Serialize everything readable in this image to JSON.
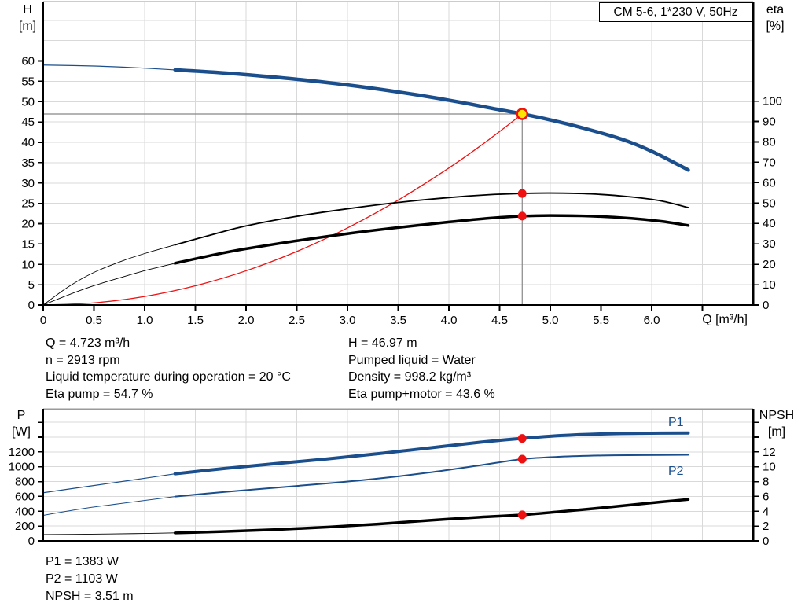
{
  "title_box": {
    "label": "CM 5-6, 1*230 V, 50Hz"
  },
  "colors": {
    "blue": "#1a4e8c",
    "red": "#ee1111",
    "yellow": "#ffe600",
    "grid": "#d9d9d9",
    "crosshair": "#878787",
    "axis": "#000000",
    "border": "#9a9a9a"
  },
  "info_block": {
    "left": [
      "Q = 4.723 m³/h",
      "n = 2913 rpm",
      "Liquid temperature during operation = 20 °C",
      "Eta pump = 54.7 %"
    ],
    "right": [
      "H = 46.97 m",
      "Pumped liquid = Water",
      "Density = 998.2 kg/m³",
      "Eta pump+motor = 43.6 %"
    ]
  },
  "results_block": {
    "lines": [
      "P1 = 1383 W",
      "P2 = 1103 W",
      "NPSH = 3.51 m"
    ]
  },
  "curve_labels": {
    "p1": "P1",
    "p2": "P2"
  },
  "chart_data": [
    {
      "id": "top-chart",
      "type": "line",
      "title": "CM 5-6, 1*230 V, 50Hz",
      "xlabel": "Q [m³/h]",
      "ylabel_left_lines": [
        "H",
        "[m]"
      ],
      "ylabel_right_lines": [
        "eta",
        "[%]"
      ],
      "axes": {
        "x": {
          "min": 0,
          "max": 7.0,
          "ticks": [
            0,
            0.5,
            1,
            1.5,
            2,
            2.5,
            3,
            3.5,
            4,
            4.5,
            5,
            5.5,
            6
          ],
          "tick_labels": [
            "0",
            "0.5",
            "1.0",
            "1.5",
            "2.0",
            "2.5",
            "3.0",
            "3.5",
            "4.0",
            "4.5",
            "5.0",
            "5.5",
            "6.0"
          ],
          "minor_ticks": [
            6.5
          ],
          "grid": [
            0.5,
            1,
            1.5,
            2,
            2.5,
            3,
            3.5,
            4,
            4.5,
            5,
            5.5,
            6,
            6.5
          ],
          "show_ticks": true
        },
        "left": {
          "min": 0,
          "max": 74.6,
          "ticks": [
            0,
            5,
            10,
            15,
            20,
            25,
            30,
            35,
            40,
            45,
            50,
            55,
            60
          ],
          "tick_labels": [
            "0",
            "5",
            "10",
            "15",
            "20",
            "25",
            "30",
            "35",
            "40",
            "45",
            "50",
            "55",
            "60"
          ],
          "grid": [
            5,
            10,
            15,
            20,
            25,
            30,
            35,
            40,
            45,
            50,
            55,
            60,
            65,
            70
          ]
        },
        "right": {
          "min": 0,
          "max": 148.8,
          "ticks": [
            0,
            10,
            20,
            30,
            40,
            50,
            60,
            70,
            80,
            90,
            100
          ],
          "tick_labels": [
            "0",
            "10",
            "20",
            "30",
            "40",
            "50",
            "60",
            "70",
            "80",
            "90",
            "100"
          ]
        }
      },
      "series": [
        {
          "name": "H pump curve",
          "axis": "left",
          "color": "blue",
          "width": 4.5,
          "thin_until": 1.3,
          "thin_width": 1.2,
          "points": [
            [
              0,
              59.0
            ],
            [
              0.5,
              58.75
            ],
            [
              0.9,
              58.35
            ],
            [
              1.3,
              57.8
            ],
            [
              1.7,
              57.2
            ],
            [
              2.1,
              56.4
            ],
            [
              2.5,
              55.5
            ],
            [
              2.9,
              54.4
            ],
            [
              3.3,
              53.1
            ],
            [
              3.7,
              51.6
            ],
            [
              4.1,
              49.9
            ],
            [
              4.5,
              48.0
            ],
            [
              4.723,
              46.97
            ],
            [
              5.0,
              45.5
            ],
            [
              5.31,
              43.6
            ],
            [
              5.7,
              40.8
            ],
            [
              6.0,
              37.8
            ],
            [
              6.36,
              33.2
            ]
          ]
        },
        {
          "name": "System curve",
          "axis": "left",
          "color": "red",
          "width": 1.3,
          "points": [
            [
              0,
              0
            ],
            [
              0.5,
              0.53
            ],
            [
              1.0,
              2.11
            ],
            [
              1.5,
              4.74
            ],
            [
              2.0,
              8.42
            ],
            [
              2.5,
              13.16
            ],
            [
              3.0,
              18.95
            ],
            [
              3.5,
              25.79
            ],
            [
              4.0,
              33.69
            ],
            [
              4.3,
              38.93
            ],
            [
              4.55,
              43.6
            ],
            [
              4.723,
              46.97
            ]
          ]
        },
        {
          "name": "Eta pump",
          "axis": "right",
          "color": "black",
          "width": 1.8,
          "thin_until": 1.3,
          "thin_width": 0.9,
          "points": [
            [
              0,
              0
            ],
            [
              0.25,
              9
            ],
            [
              0.5,
              16
            ],
            [
              0.8,
              22
            ],
            [
              1.05,
              26
            ],
            [
              1.3,
              29.5
            ],
            [
              1.7,
              35
            ],
            [
              2.0,
              38.8
            ],
            [
              2.5,
              43.5
            ],
            [
              3.0,
              47.2
            ],
            [
              3.5,
              50.3
            ],
            [
              4.0,
              52.7
            ],
            [
              4.4,
              54.1
            ],
            [
              4.723,
              54.7
            ],
            [
              5.0,
              54.9
            ],
            [
              5.4,
              54.5
            ],
            [
              5.8,
              53.0
            ],
            [
              6.1,
              51.0
            ],
            [
              6.36,
              47.8
            ]
          ]
        },
        {
          "name": "Eta pump+motor",
          "axis": "right",
          "color": "black",
          "width": 3.5,
          "thin_until": 1.3,
          "thin_width": 0.9,
          "points": [
            [
              0,
              0
            ],
            [
              0.25,
              5
            ],
            [
              0.5,
              9.5
            ],
            [
              0.8,
              14
            ],
            [
              1.05,
              17.5
            ],
            [
              1.3,
              20.5
            ],
            [
              1.7,
              24.8
            ],
            [
              2.0,
              27.6
            ],
            [
              2.5,
              31.5
            ],
            [
              3.0,
              35.0
            ],
            [
              3.5,
              38.0
            ],
            [
              4.0,
              40.7
            ],
            [
              4.4,
              42.6
            ],
            [
              4.723,
              43.6
            ],
            [
              5.0,
              43.9
            ],
            [
              5.4,
              43.6
            ],
            [
              5.8,
              42.5
            ],
            [
              6.1,
              41.0
            ],
            [
              6.36,
              39.0
            ]
          ]
        }
      ],
      "markers": {
        "crosshair": {
          "q": 4.723,
          "value": 46.97
        },
        "duty_point": {
          "q": 4.723,
          "value": 46.97,
          "axis": "left"
        },
        "dots": [
          {
            "q": 4.723,
            "value": 54.7,
            "axis": "right"
          },
          {
            "q": 4.723,
            "value": 43.6,
            "axis": "right"
          }
        ]
      }
    },
    {
      "id": "bottom-chart",
      "type": "line",
      "title": "",
      "xlabel": "",
      "ylabel_left_lines": [
        "P",
        "[W]"
      ],
      "ylabel_right_lines": [
        "NPSH",
        "[m]"
      ],
      "axes": {
        "x": {
          "min": 0,
          "max": 7.0,
          "ticks": [],
          "tick_labels": [],
          "minor_ticks": [],
          "grid": [
            0.5,
            1,
            1.5,
            2,
            2.5,
            3,
            3.5,
            4,
            4.5,
            5,
            5.5,
            6,
            6.5
          ],
          "show_ticks": false
        },
        "left": {
          "min": 0,
          "max": 1782,
          "ticks": [
            0,
            200,
            400,
            600,
            800,
            1000,
            1200,
            1400,
            1600
          ],
          "tick_labels": [
            "0",
            "200",
            "400",
            "600",
            "800",
            "1000",
            "1200",
            "",
            ""
          ],
          "grid": [
            200,
            400,
            600,
            800,
            1000,
            1200,
            1400,
            1600
          ]
        },
        "right": {
          "min": 0,
          "max": 17.82,
          "ticks": [
            0,
            2,
            4,
            6,
            8,
            10,
            12,
            14,
            16
          ],
          "tick_labels": [
            "0",
            "2",
            "4",
            "6",
            "8",
            "10",
            "12",
            "",
            ""
          ]
        }
      },
      "series": [
        {
          "name": "P1",
          "axis": "left",
          "color": "blue",
          "width": 4,
          "thin_until": 1.3,
          "thin_width": 1.2,
          "points": [
            [
              0,
              650
            ],
            [
              0.4,
              728
            ],
            [
              0.9,
              825
            ],
            [
              1.3,
              905
            ],
            [
              1.8,
              978
            ],
            [
              2.3,
              1043
            ],
            [
              2.8,
              1106
            ],
            [
              3.3,
              1176
            ],
            [
              3.8,
              1253
            ],
            [
              4.3,
              1330
            ],
            [
              4.723,
              1383
            ],
            [
              5.1,
              1421
            ],
            [
              5.5,
              1443
            ],
            [
              5.9,
              1452
            ],
            [
              6.36,
              1456
            ]
          ]
        },
        {
          "name": "P2",
          "axis": "left",
          "color": "blue",
          "width": 2,
          "thin_until": 1.3,
          "thin_width": 1,
          "points": [
            [
              0,
              345
            ],
            [
              0.4,
              438
            ],
            [
              0.9,
              528
            ],
            [
              1.3,
              598
            ],
            [
              1.8,
              662
            ],
            [
              2.3,
              719
            ],
            [
              2.8,
              776
            ],
            [
              3.3,
              841
            ],
            [
              3.8,
              921
            ],
            [
              4.3,
              1018
            ],
            [
              4.723,
              1103
            ],
            [
              5.1,
              1136
            ],
            [
              5.5,
              1152
            ],
            [
              5.9,
              1158
            ],
            [
              6.36,
              1161
            ]
          ]
        },
        {
          "name": "NPSH",
          "axis": "right",
          "color": "black",
          "width": 3.5,
          "thin_until": 1.3,
          "thin_width": 0.9,
          "points": [
            [
              0,
              0.85
            ],
            [
              0.4,
              0.9
            ],
            [
              0.9,
              0.98
            ],
            [
              1.3,
              1.08
            ],
            [
              1.8,
              1.27
            ],
            [
              2.3,
              1.52
            ],
            [
              2.8,
              1.86
            ],
            [
              3.3,
              2.27
            ],
            [
              3.8,
              2.76
            ],
            [
              4.3,
              3.2
            ],
            [
              4.723,
              3.51
            ],
            [
              5.1,
              3.95
            ],
            [
              5.5,
              4.45
            ],
            [
              5.9,
              5.0
            ],
            [
              6.36,
              5.6
            ]
          ]
        }
      ],
      "markers": {
        "dots": [
          {
            "q": 4.723,
            "value": 1383,
            "axis": "left"
          },
          {
            "q": 4.723,
            "value": 1103,
            "axis": "left"
          },
          {
            "q": 4.723,
            "value": 3.51,
            "axis": "right"
          }
        ]
      }
    }
  ]
}
